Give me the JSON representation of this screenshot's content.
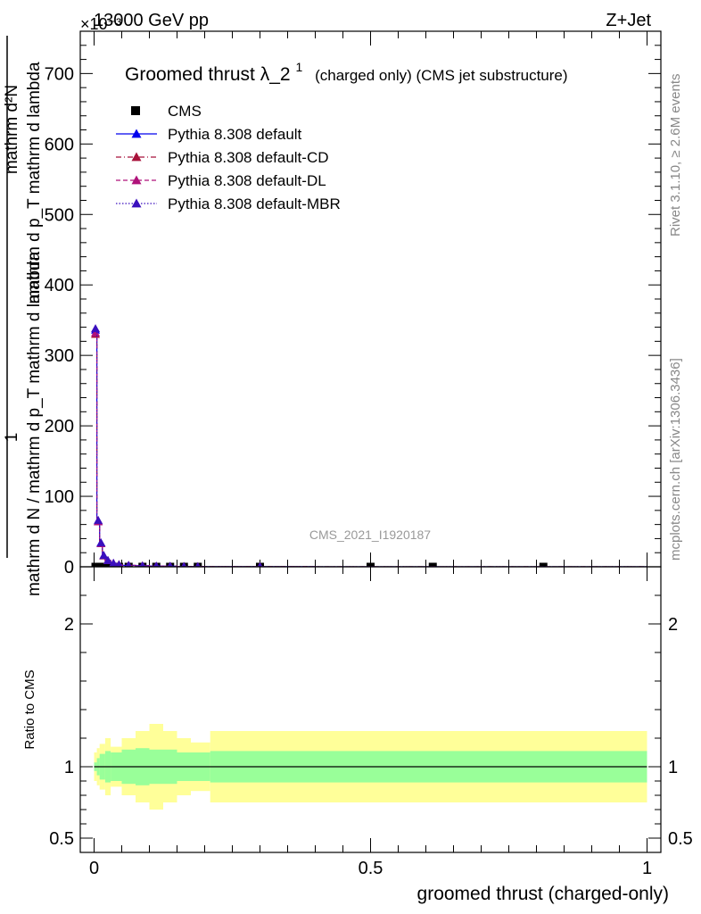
{
  "header": {
    "left": "13000 GeV pp",
    "right": "Z+Jet",
    "exponent": "×10⁻³"
  },
  "side": {
    "rivet": "Rivet 3.1.10, ≥ 2.6M events",
    "mcplots": "mcplots.cern.ch [arXiv:1306.3436]"
  },
  "main_plot": {
    "title_main": "Groomed thrust",
    "title_lambda": "λ_2",
    "title_sup": "1",
    "title_rest": "(charged only) (CMS jet substructure)",
    "ylabel_numerator": "mathrm d²N",
    "ylabel_denominator": "mathrm d p_T mathrm d lambda",
    "ylabel_left": "mathrm d N / mathrm d p_T mathrm d lambda",
    "ylabel_one": "1",
    "watermark": "CMS_2021_I1920187",
    "yticks": [
      0,
      100,
      200,
      300,
      400,
      500,
      600,
      700
    ],
    "ylim": [
      0,
      760
    ]
  },
  "ratio_plot": {
    "ylabel": "Ratio to CMS",
    "yticks": [
      {
        "value": 0.5,
        "label": "0.5"
      },
      {
        "value": 1,
        "label": "1"
      },
      {
        "value": 2,
        "label": "2"
      }
    ],
    "ylim": [
      0.4,
      2.4
    ]
  },
  "xaxis": {
    "label": "groomed thrust (charged-only)",
    "ticks": [
      {
        "value": 0,
        "label": "0"
      },
      {
        "value": 0.5,
        "label": "0.5"
      },
      {
        "value": 1,
        "label": "1"
      }
    ],
    "xlim": [
      -0.025,
      1.025
    ]
  },
  "colors": {
    "cms": "#000000",
    "default": "#0000ee",
    "cd": "#a8123a",
    "dl": "#b0127a",
    "mbr": "#3a0fbe",
    "band_inner": "#99ff99",
    "band_outer": "#ffff99"
  },
  "chart_data": {
    "type": "line",
    "x_edges": [
      0,
      0.005,
      0.01,
      0.015,
      0.02,
      0.03,
      0.04,
      0.05,
      0.075,
      0.1,
      0.125,
      0.15,
      0.175,
      0.2,
      0.4,
      0.6,
      0.625,
      1.0
    ],
    "series": [
      {
        "name": "CMS",
        "style": "markers",
        "values": [
          0.003,
          0.002,
          0.0015,
          0.001,
          0.001,
          0.001,
          0.001,
          0.001,
          0.0008,
          0.0007,
          0.0005,
          0.0004,
          0.0003,
          0.0002,
          0.0001,
          0.0015,
          0.0001
        ]
      },
      {
        "name": "Pythia 8.308 default",
        "style": "solid",
        "values": [
          336,
          65,
          34,
          16,
          9,
          5,
          3,
          2,
          1.5,
          1.0,
          0.8,
          0.5,
          0.3,
          0.2,
          0.1,
          0.05,
          0.02
        ]
      },
      {
        "name": "Pythia 8.308 default-CD",
        "style": "dashdot",
        "values": [
          330,
          64,
          33,
          15.5,
          8.8,
          4.8,
          3,
          2,
          1.5,
          1.0,
          0.8,
          0.5,
          0.3,
          0.2,
          0.1,
          0.05,
          0.02
        ]
      },
      {
        "name": "Pythia 8.308 default-DL",
        "style": "dashed",
        "values": [
          332,
          64,
          33,
          15.8,
          8.9,
          4.9,
          3,
          2,
          1.5,
          1.0,
          0.8,
          0.5,
          0.3,
          0.2,
          0.1,
          0.05,
          0.02
        ]
      },
      {
        "name": "Pythia 8.308 default-MBR",
        "style": "dotted",
        "values": [
          338,
          66,
          34,
          16.2,
          9.1,
          5.1,
          3,
          2,
          1.5,
          1.0,
          0.8,
          0.5,
          0.3,
          0.2,
          0.1,
          0.05,
          0.02
        ]
      }
    ],
    "ratio_bands": {
      "edges": [
        0,
        0.005,
        0.01,
        0.02,
        0.03,
        0.05,
        0.075,
        0.1,
        0.125,
        0.15,
        0.175,
        0.2,
        0.21,
        1.0
      ],
      "inner": [
        [
          0.97,
          1.03
        ],
        [
          0.94,
          1.06
        ],
        [
          0.91,
          1.09
        ],
        [
          0.89,
          1.11
        ],
        [
          0.9,
          1.1
        ],
        [
          0.88,
          1.12
        ],
        [
          0.87,
          1.13
        ],
        [
          0.88,
          1.12
        ],
        [
          0.88,
          1.12
        ],
        [
          0.9,
          1.1
        ],
        [
          0.9,
          1.1
        ],
        [
          0.9,
          1.1
        ],
        [
          0.89,
          1.11
        ]
      ],
      "outer": [
        [
          0.9,
          1.1
        ],
        [
          0.87,
          1.13
        ],
        [
          0.84,
          1.16
        ],
        [
          0.8,
          1.2
        ],
        [
          0.86,
          1.14
        ],
        [
          0.8,
          1.2
        ],
        [
          0.75,
          1.25
        ],
        [
          0.7,
          1.3
        ],
        [
          0.75,
          1.25
        ],
        [
          0.8,
          1.2
        ],
        [
          0.83,
          1.17
        ],
        [
          0.83,
          1.17
        ],
        [
          0.75,
          1.25
        ]
      ]
    }
  }
}
